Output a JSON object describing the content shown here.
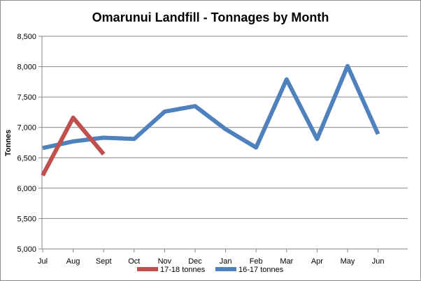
{
  "chart_data": {
    "type": "line",
    "title": "Omarunui  Landfill  - Tonnages  by Month",
    "xlabel": "",
    "ylabel": "Tonnes",
    "categories": [
      "Jul",
      "Aug",
      "Sept",
      "Oct",
      "Nov",
      "Dec",
      "Jan",
      "Feb",
      "Mar",
      "Apr",
      "May",
      "Jun"
    ],
    "ylim": [
      5000,
      8500
    ],
    "yticks": [
      "5,000",
      "5,500",
      "6,000",
      "6,500",
      "7,000",
      "7,500",
      "8,000",
      "8,500"
    ],
    "ytick_values": [
      5000,
      5500,
      6000,
      6500,
      7000,
      7500,
      8000,
      8500
    ],
    "grid": true,
    "legend_position": "bottom",
    "series": [
      {
        "name": "17-18 tonnes",
        "color": "#c0504d",
        "values": [
          6210,
          7160,
          6560,
          null,
          null,
          null,
          null,
          null,
          null,
          null,
          null,
          null
        ]
      },
      {
        "name": "16-17 tonnes",
        "color": "#4f81bd",
        "values": [
          6660,
          6770,
          6830,
          6810,
          7260,
          7350,
          6970,
          6670,
          7790,
          6810,
          8010,
          6890
        ]
      }
    ]
  }
}
